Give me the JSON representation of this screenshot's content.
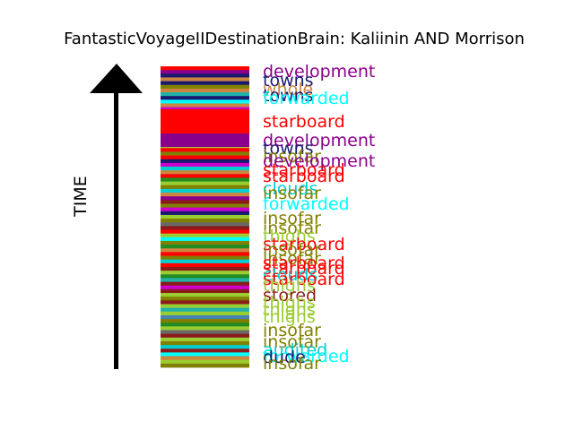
{
  "title": "FantasticVoyageIIDestinationBrain: Kaliinin AND Morrison",
  "axis_label": "TIME",
  "colors": {
    "purple": "#8b008b",
    "navy": "#191970",
    "peru": "#cd853f",
    "cyan": "#00ffff",
    "red": "#ff0000",
    "olive": "#808000",
    "lime": "#9acd32",
    "teal": "#20b2aa",
    "brown": "#8b1a1a",
    "turquoise": "#00ced1",
    "violet": "#cc00cc",
    "green": "#228b22",
    "dim": "#696969",
    "steel": "#4682b4"
  },
  "stripes": [
    "red",
    "purple",
    "navy",
    "peru",
    "navy",
    "olive",
    "peru",
    "teal",
    "navy",
    "cyan",
    "peru",
    "violet",
    "red",
    "red",
    "purple",
    "purple",
    "navy",
    "red",
    "olive",
    "green",
    "violet",
    "lime",
    "red",
    "olive",
    "red",
    "navy",
    "violet",
    "turquoise",
    "peru",
    "red",
    "green",
    "lime",
    "olive",
    "turquoise",
    "peru",
    "purple",
    "brown",
    "olive",
    "violet",
    "navy",
    "lime",
    "olive",
    "dim",
    "brown",
    "red",
    "lime",
    "cyan",
    "olive",
    "green",
    "peru",
    "red",
    "olive",
    "turquoise",
    "red",
    "brown",
    "lime",
    "green",
    "teal",
    "brown",
    "violet",
    "brown",
    "lime",
    "olive",
    "brown",
    "lime",
    "teal",
    "lime",
    "steel",
    "olive",
    "green",
    "lime",
    "dim",
    "brown",
    "lime",
    "olive",
    "turquoise",
    "brown",
    "cyan",
    "peru",
    "lime",
    "olive"
  ],
  "words": [
    {
      "text": "development",
      "color": "purple"
    },
    {
      "text": "towns",
      "color": "navy"
    },
    {
      "text": "whole",
      "color": "peru"
    },
    {
      "text": "towns",
      "color": "navy"
    },
    {
      "text": "forwarded",
      "color": "cyan"
    },
    {
      "text": "starboard",
      "color": "red"
    },
    {
      "text": "development",
      "color": "purple"
    },
    {
      "text": "towns",
      "color": "navy"
    },
    {
      "text": "insofar",
      "color": "olive"
    },
    {
      "text": "development",
      "color": "purple"
    },
    {
      "text": "starboard",
      "color": "red"
    },
    {
      "text": "starboard",
      "color": "red"
    },
    {
      "text": "clouds",
      "color": "turquoise"
    },
    {
      "text": "insofar",
      "color": "olive"
    },
    {
      "text": "forwarded",
      "color": "cyan"
    },
    {
      "text": "insofar",
      "color": "olive"
    },
    {
      "text": "insofar",
      "color": "olive"
    },
    {
      "text": "thighs",
      "color": "lime"
    },
    {
      "text": "starboard",
      "color": "red"
    },
    {
      "text": "insofar",
      "color": "olive"
    },
    {
      "text": "insofar",
      "color": "olive"
    },
    {
      "text": "starboard",
      "color": "red"
    },
    {
      "text": "starboard",
      "color": "red"
    },
    {
      "text": "clouds",
      "color": "turquoise"
    },
    {
      "text": "starboard",
      "color": "red"
    },
    {
      "text": "thighs",
      "color": "lime"
    },
    {
      "text": "stored",
      "color": "brown"
    },
    {
      "text": "thighs",
      "color": "lime"
    },
    {
      "text": "thighs",
      "color": "lime"
    },
    {
      "text": "thighs",
      "color": "lime"
    },
    {
      "text": "insofar",
      "color": "olive"
    },
    {
      "text": "insofar",
      "color": "olive"
    },
    {
      "text": "audited",
      "color": "turquoise"
    },
    {
      "text": "forwarded",
      "color": "cyan"
    },
    {
      "text": "dude",
      "color": "navy"
    },
    {
      "text": "insofar",
      "color": "olive"
    }
  ]
}
